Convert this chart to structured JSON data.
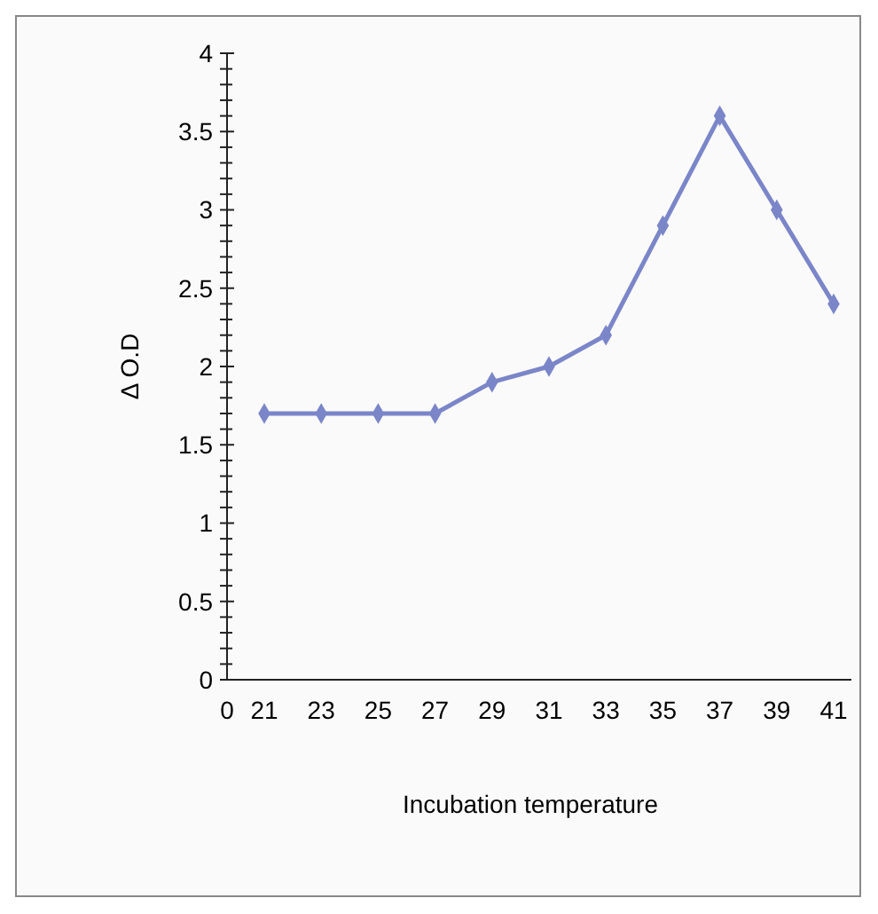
{
  "chart_data": {
    "type": "line",
    "xlabel": "Incubation temperature",
    "ylabel": "Δ O.D",
    "categories": [
      "0",
      "21",
      "23",
      "25",
      "27",
      "29",
      "31",
      "33",
      "35",
      "37",
      "39",
      "41"
    ],
    "series": [
      {
        "color": "#7b86c9",
        "values": [
          null,
          1.7,
          1.7,
          1.7,
          1.7,
          1.9,
          2.0,
          2.2,
          2.9,
          3.6,
          3.0,
          2.4
        ]
      }
    ],
    "ylim": [
      0,
      4
    ],
    "yticks": [
      0,
      {
        "value": 0.1,
        "label": null
      },
      {
        "value": 0.2,
        "label": null
      },
      {
        "value": 0.3,
        "label": null
      },
      {
        "value": 0.4,
        "label": null
      },
      0.5,
      {
        "value": 0.6,
        "label": null
      },
      {
        "value": 0.7,
        "label": null
      },
      {
        "value": 0.8,
        "label": null
      },
      {
        "value": 0.9,
        "label": null
      },
      1,
      {
        "value": 1.1,
        "label": null
      },
      {
        "value": 1.2,
        "label": null
      },
      {
        "value": 1.3,
        "label": null
      },
      {
        "value": 1.4,
        "label": null
      },
      1.5,
      {
        "value": 1.6,
        "label": null
      },
      {
        "value": 1.7,
        "label": null
      },
      {
        "value": 1.8,
        "label": null
      },
      {
        "value": 1.9,
        "label": null
      },
      2,
      {
        "value": 2.1,
        "label": null
      },
      {
        "value": 2.2,
        "label": null
      },
      {
        "value": 2.3,
        "label": null
      },
      {
        "value": 2.4,
        "label": null
      },
      2.5,
      {
        "value": 2.6,
        "label": null
      },
      {
        "value": 2.7,
        "label": null
      },
      {
        "value": 2.8,
        "label": null
      },
      {
        "value": 2.9,
        "label": null
      },
      3,
      {
        "value": 3.1,
        "label": null
      },
      {
        "value": 3.2,
        "label": null
      },
      {
        "value": 3.3,
        "label": null
      },
      {
        "value": 3.4,
        "label": null
      },
      3.5,
      {
        "value": 3.6,
        "label": null
      },
      {
        "value": 3.7,
        "label": null
      },
      {
        "value": 3.8,
        "label": null
      },
      {
        "value": 3.9,
        "label": null
      },
      4
    ],
    "marker": "diamond",
    "line_style": "solid"
  }
}
